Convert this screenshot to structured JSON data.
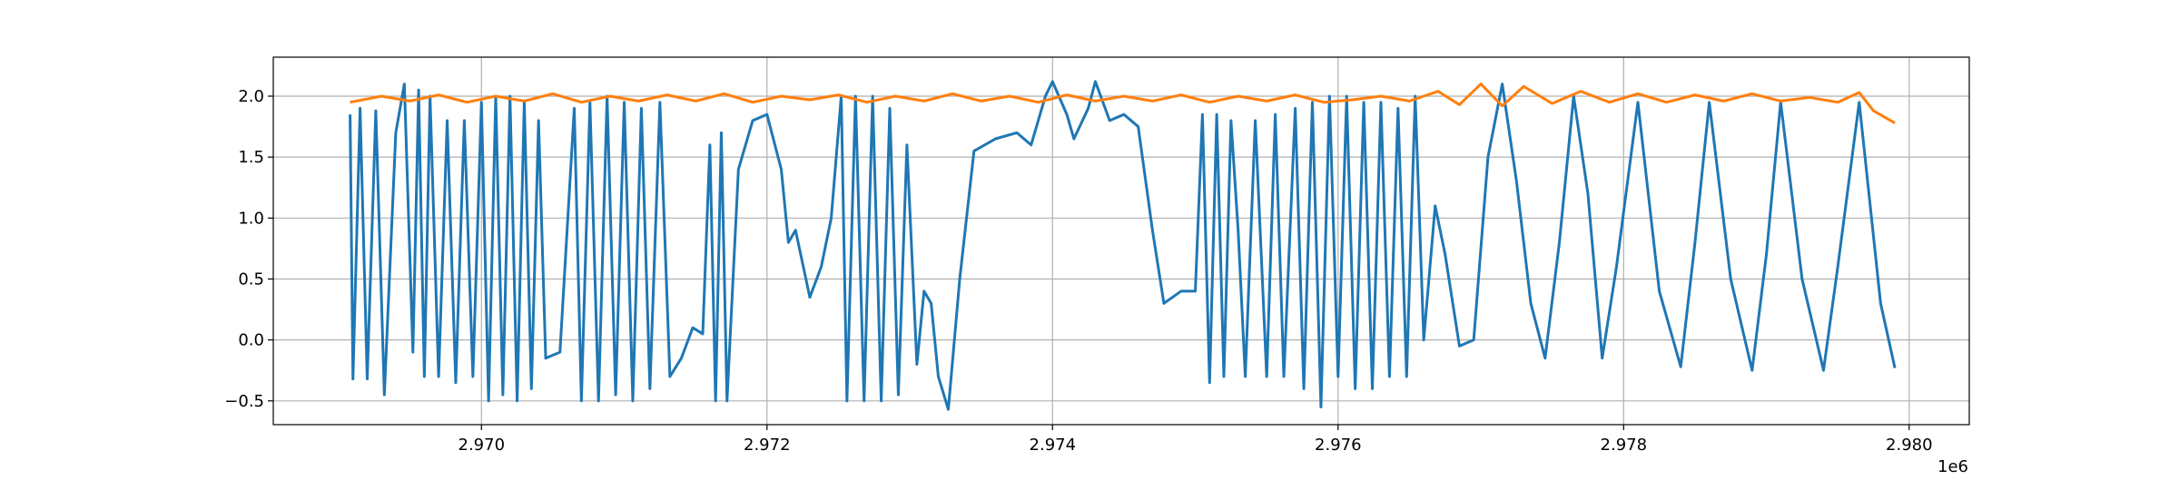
{
  "chart_data": {
    "type": "line",
    "x_offset_label": "1e6",
    "xlim": [
      2968542,
      2980421
    ],
    "ylim": [
      -0.695,
      2.32
    ],
    "xticks": [
      {
        "value": 2970000,
        "label": "2.970"
      },
      {
        "value": 2972000,
        "label": "2.972"
      },
      {
        "value": 2974000,
        "label": "2.974"
      },
      {
        "value": 2976000,
        "label": "2.976"
      },
      {
        "value": 2978000,
        "label": "2.978"
      },
      {
        "value": 2980000,
        "label": "2.980"
      }
    ],
    "yticks": [
      {
        "value": -0.5,
        "label": "−0.5"
      },
      {
        "value": 0,
        "label": "0.0"
      },
      {
        "value": 0.5,
        "label": "0.5"
      },
      {
        "value": 1,
        "label": "1.0"
      },
      {
        "value": 1.5,
        "label": "1.5"
      },
      {
        "value": 2,
        "label": "2.0"
      }
    ],
    "grid": true,
    "series": [
      {
        "color": "#1f77b4",
        "x": [
          2969080,
          2969100,
          2969150,
          2969200,
          2969260,
          2969320,
          2969400,
          2969460,
          2969520,
          2969560,
          2969600,
          2969640,
          2969700,
          2969760,
          2969820,
          2969880,
          2969940,
          2970000,
          2970050,
          2970100,
          2970150,
          2970200,
          2970250,
          2970300,
          2970350,
          2970400,
          2970450,
          2970550,
          2970650,
          2970700,
          2970760,
          2970820,
          2970880,
          2970940,
          2971000,
          2971060,
          2971120,
          2971180,
          2971250,
          2971320,
          2971400,
          2971480,
          2971550,
          2971600,
          2971640,
          2971680,
          2971720,
          2971800,
          2971900,
          2972000,
          2972100,
          2972150,
          2972200,
          2972300,
          2972380,
          2972450,
          2972520,
          2972560,
          2972620,
          2972680,
          2972740,
          2972800,
          2972860,
          2972920,
          2972980,
          2973050,
          2973100,
          2973150,
          2973200,
          2973270,
          2973350,
          2973450,
          2973600,
          2973750,
          2973850,
          2973950,
          2974000,
          2974100,
          2974150,
          2974250,
          2974300,
          2974400,
          2974500,
          2974600,
          2974700,
          2974780,
          2974900,
          2975000,
          2975050,
          2975100,
          2975150,
          2975200,
          2975250,
          2975300,
          2975350,
          2975420,
          2975500,
          2975560,
          2975620,
          2975700,
          2975760,
          2975820,
          2975880,
          2975940,
          2976000,
          2976060,
          2976120,
          2976180,
          2976240,
          2976300,
          2976360,
          2976420,
          2976480,
          2976540,
          2976600,
          2976680,
          2976750,
          2976850,
          2976950,
          2977050,
          2977150,
          2977250,
          2977350,
          2977450,
          2977550,
          2977650,
          2977750,
          2977850,
          2977950,
          2978100,
          2978250,
          2978400,
          2978500,
          2978600,
          2978750,
          2978900,
          2979000,
          2979100,
          2979250,
          2979400,
          2979500,
          2979650,
          2979800,
          2979900
        ],
        "values": [
          1.85,
          -0.32,
          1.9,
          -0.32,
          1.88,
          -0.45,
          1.7,
          2.1,
          -0.1,
          2.05,
          -0.3,
          2.0,
          -0.3,
          1.8,
          -0.35,
          1.8,
          -0.3,
          1.95,
          -0.5,
          2.0,
          -0.45,
          2.0,
          -0.5,
          1.95,
          -0.4,
          1.8,
          -0.15,
          -0.1,
          1.9,
          -0.5,
          1.95,
          -0.5,
          2.0,
          -0.45,
          1.95,
          -0.5,
          1.9,
          -0.4,
          1.95,
          -0.3,
          -0.15,
          0.1,
          0.05,
          1.6,
          -0.5,
          1.7,
          -0.5,
          1.4,
          1.8,
          1.85,
          1.4,
          0.8,
          0.9,
          0.35,
          0.6,
          1.0,
          2.0,
          -0.5,
          2.0,
          -0.5,
          2.0,
          -0.5,
          1.9,
          -0.45,
          1.6,
          -0.2,
          0.4,
          0.3,
          -0.3,
          -0.57,
          0.5,
          1.55,
          1.65,
          1.7,
          1.6,
          2.0,
          2.12,
          1.85,
          1.65,
          1.9,
          2.12,
          1.8,
          1.85,
          1.75,
          0.9,
          0.3,
          0.4,
          0.4,
          1.85,
          -0.35,
          1.85,
          -0.3,
          1.8,
          0.9,
          -0.3,
          1.8,
          -0.3,
          1.85,
          -0.3,
          1.9,
          -0.4,
          1.95,
          -0.55,
          2.0,
          -0.3,
          2.0,
          -0.4,
          1.95,
          -0.4,
          1.95,
          -0.3,
          1.9,
          -0.3,
          2.0,
          0.0,
          1.1,
          0.7,
          -0.05,
          0.0,
          1.5,
          2.1,
          1.3,
          0.3,
          -0.15,
          0.8,
          2.0,
          1.2,
          -0.15,
          0.6,
          1.95,
          0.4,
          -0.22,
          0.8,
          1.95,
          0.5,
          -0.25,
          0.7,
          1.95,
          0.5,
          -0.25,
          0.6,
          1.95,
          0.3,
          -0.23
        ]
      },
      {
        "color": "#ff7f0e",
        "x": [
          2969080,
          2969300,
          2969500,
          2969700,
          2969900,
          2970100,
          2970300,
          2970500,
          2970700,
          2970900,
          2971100,
          2971300,
          2971500,
          2971700,
          2971900,
          2972100,
          2972300,
          2972500,
          2972700,
          2972900,
          2973100,
          2973300,
          2973500,
          2973700,
          2973900,
          2974100,
          2974300,
          2974500,
          2974700,
          2974900,
          2975100,
          2975300,
          2975500,
          2975700,
          2975900,
          2976100,
          2976300,
          2976500,
          2976700,
          2976850,
          2977000,
          2977150,
          2977300,
          2977500,
          2977700,
          2977900,
          2978100,
          2978300,
          2978500,
          2978700,
          2978900,
          2979100,
          2979300,
          2979500,
          2979650,
          2979750,
          2979900
        ],
        "values": [
          1.95,
          2.0,
          1.96,
          2.01,
          1.95,
          2.0,
          1.96,
          2.02,
          1.95,
          2.0,
          1.96,
          2.01,
          1.96,
          2.02,
          1.95,
          2.0,
          1.97,
          2.01,
          1.95,
          2.0,
          1.96,
          2.02,
          1.96,
          2.0,
          1.95,
          2.01,
          1.96,
          2.0,
          1.96,
          2.01,
          1.95,
          2.0,
          1.96,
          2.01,
          1.95,
          1.97,
          2.0,
          1.96,
          2.04,
          1.93,
          2.1,
          1.92,
          2.08,
          1.94,
          2.04,
          1.95,
          2.02,
          1.95,
          2.01,
          1.96,
          2.02,
          1.96,
          1.99,
          1.95,
          2.03,
          1.88,
          1.78
        ]
      }
    ]
  }
}
